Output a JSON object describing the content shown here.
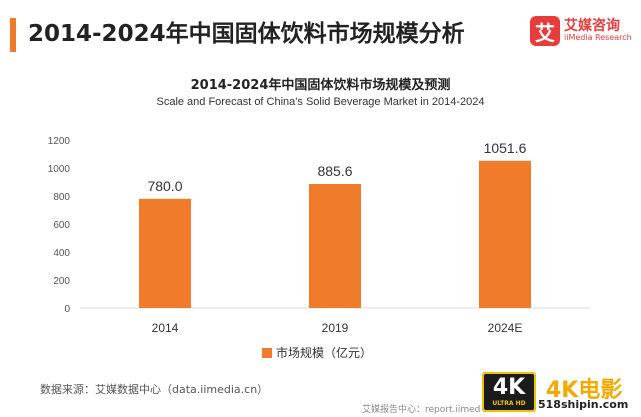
{
  "header": {
    "title": "2014-2024年中国固体饮料市场规模分析",
    "accent_color": "#f07b2a"
  },
  "brand": {
    "logo_char": "艾",
    "name_cn": "艾媒咨询",
    "name_en": "iiMedia Research",
    "color": "#e63c3c"
  },
  "chart_data": {
    "type": "bar",
    "title": "2014-2024年中国固体饮料市场规模及预测",
    "subtitle": "Scale and Forecast of China's Solid Beverage Market in 2014-2024",
    "categories": [
      "2014",
      "2019",
      "2024E"
    ],
    "series": [
      {
        "name": "市场规模（亿元）",
        "values": [
          780.0,
          885.6,
          1051.6
        ],
        "color": "#f07b2a"
      }
    ],
    "data_labels": [
      "780.0",
      "885.6",
      "1051.6"
    ],
    "ylim": [
      0,
      1200
    ],
    "yticks": [
      0,
      200,
      400,
      600,
      800,
      1000,
      1200
    ],
    "grid": false,
    "legend_position": "bottom"
  },
  "source": "数据来源：艾媒数据中心（data.iimedia.cn）",
  "footer_note": "艾媒报告中心：report.iimedia.cn",
  "watermark": {
    "badge_big": "4K",
    "badge_small": "ULTRA HD",
    "name": "4K电影",
    "site": "518shipin.com"
  }
}
